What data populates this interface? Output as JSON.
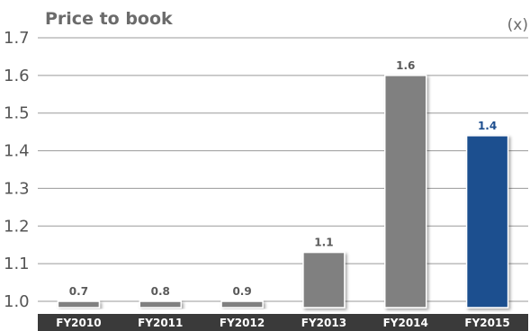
{
  "chart_data": {
    "type": "bar",
    "title": "Price to book",
    "unit_label": "(x)",
    "categories": [
      "FY2010",
      "FY2011",
      "FY2012",
      "FY2013",
      "FY2014",
      "FY2015"
    ],
    "values": [
      0.7,
      0.8,
      0.9,
      1.13,
      1.6,
      1.44
    ],
    "data_labels": [
      "0.7",
      "0.8",
      "0.9",
      "1.1",
      "1.6",
      "1.4"
    ],
    "highlight_index": 5,
    "yticks": [
      "1.7",
      "1.6",
      "1.5",
      "1.4",
      "1.3",
      "1.2",
      "1.1",
      "1.0"
    ],
    "ylim": [
      1.0,
      1.7
    ],
    "grid": true,
    "colors": {
      "bar": "#808080",
      "highlight_bar": "#1e4f8f",
      "axis_band": "#3a3a3a",
      "grid": "#9a9a9a",
      "highlight_label": "#1e4f8f"
    }
  }
}
